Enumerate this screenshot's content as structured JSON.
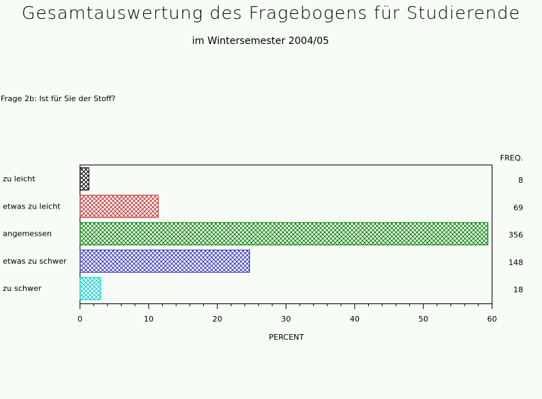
{
  "header": {
    "title": "Gesamtauswertung des Fragebogens für Studierende",
    "subtitle": "im Wintersemester 2004/05"
  },
  "question": "Frage 2b: Ist für Sie der Stoff?",
  "chart_data": {
    "type": "bar",
    "orientation": "horizontal",
    "categories": [
      "zu leicht",
      "etwas zu leicht",
      "angemessen",
      "etwas zu schwer",
      "zu schwer"
    ],
    "values": [
      1.3,
      11.4,
      59.4,
      24.7,
      3.0
    ],
    "freq_header": "FREQ.",
    "freq_labels": [
      "8",
      "69",
      "356",
      "148",
      "18"
    ],
    "colors": [
      "#000000",
      "#c83232",
      "#008000",
      "#3232c8",
      "#00d0d0"
    ],
    "xlabel": "PERCENT",
    "xlim": [
      0,
      60
    ],
    "xticks": [
      0,
      10,
      20,
      30,
      40,
      50,
      60
    ],
    "grid": false
  }
}
